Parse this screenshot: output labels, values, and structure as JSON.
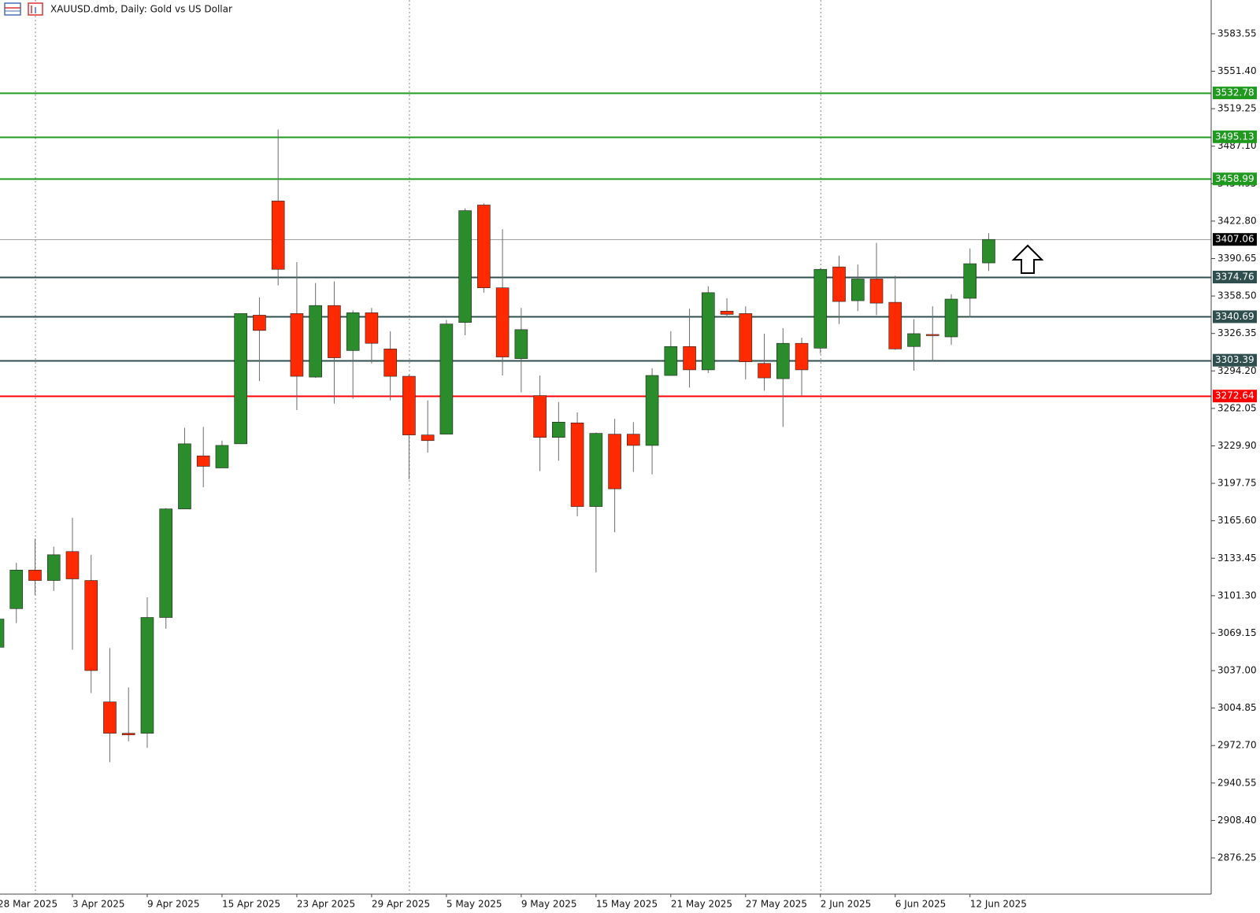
{
  "chart_data": {
    "type": "candlestick",
    "title": "XAUUSD.dmb, Daily:  Gold vs US Dollar",
    "categories": [
      "28 Mar 2025",
      null,
      null,
      null,
      "3 Apr 2025",
      null,
      null,
      null,
      "9 Apr 2025",
      null,
      null,
      null,
      "15 Apr 2025",
      null,
      null,
      null,
      "23 Apr 2025",
      null,
      null,
      null,
      "29 Apr 2025",
      null,
      null,
      null,
      "5 May 2025",
      null,
      null,
      null,
      "9 May 2025",
      null,
      null,
      null,
      "15 May 2025",
      null,
      null,
      null,
      "21 May 2025",
      null,
      null,
      null,
      "27 May 2025",
      null,
      null,
      null,
      "2 Jun 2025",
      null,
      null,
      null,
      "6 Jun 2025",
      null,
      null,
      null,
      "12 Jun 2025",
      null
    ],
    "open": [
      3057.08,
      3090.2,
      3123.32,
      3114.35,
      3139.19,
      3114.35,
      3010.16,
      2983.25,
      2983.25,
      3082.61,
      3175.76,
      3221.3,
      3210.95,
      3231.65,
      3342.05,
      3440.03,
      3343.43,
      3288.92,
      3350.33,
      3311.69,
      3344.12,
      3313.07,
      3289.61,
      3239.24,
      3239.93,
      3335.84,
      3436.58,
      3365.51,
      3304.79,
      3273.05,
      3237.17,
      3249.59,
      3177.83,
      3239.93,
      3239.93,
      3230.27,
      3290.3,
      3315.14,
      3295.13,
      3345.5,
      3343.43,
      3300.65,
      3287.54,
      3317.9,
      3313.76,
      3383.45,
      3354.47,
      3373.1,
      3353.09,
      3315.14,
      3325.49,
      3323.42,
      3356.54,
      3386.9
    ],
    "high": [
      3082.61,
      3129.53,
      3150.23,
      3143.33,
      3168.17,
      3136.43,
      3056.39,
      3022.58,
      3099.86,
      3176.45,
      3245.45,
      3246.14,
      3234.41,
      3343.43,
      3357.23,
      3501.44,
      3387.59,
      3369.65,
      3371.03,
      3346.19,
      3348.26,
      3328.25,
      3290.99,
      3268.91,
      3337.91,
      3433.82,
      3437.96,
      3415.88,
      3348.26,
      3290.3,
      3267.53,
      3258.56,
      3241.31,
      3253.04,
      3250.28,
      3296.51,
      3328.25,
      3347.57,
      3366.89,
      3356.54,
      3349.64,
      3326.18,
      3331.01,
      3322.73,
      3382.07,
      3393.11,
      3385.52,
      3404.15,
      3375.86,
      3338.6,
      3349.64,
      3359.99,
      3399.32,
      3412.43
    ],
    "low": [
      3056.39,
      3077.78,
      3101.93,
      3105.38,
      3055.01,
      3017.75,
      2958.41,
      2976.35,
      2970.83,
      3072.95,
      3175.76,
      3194.39,
      3210.95,
      3231.65,
      3285.47,
      3367.58,
      3260.63,
      3288.23,
      3266.15,
      3270.29,
      3300.65,
      3268.91,
      3201.29,
      3224.06,
      3239.93,
      3324.8,
      3361.37,
      3290.3,
      3275.81,
      3208.19,
      3217.16,
      3169.55,
      3121.25,
      3155.75,
      3207.5,
      3205.43,
      3290.3,
      3279.95,
      3292.37,
      3339.98,
      3286.85,
      3277.19,
      3246.14,
      3273.05,
      3308.93,
      3334.46,
      3345.5,
      3342.05,
      3312.38,
      3294.44,
      3302.72,
      3316.52,
      3339.98,
      3380.0
    ],
    "close": [
      3081.23,
      3123.32,
      3114.35,
      3136.43,
      3115.73,
      3037.07,
      2983.25,
      2981.87,
      3082.61,
      3175.76,
      3231.65,
      3212.33,
      3230.27,
      3343.43,
      3328.94,
      3381.38,
      3289.61,
      3350.33,
      3305.48,
      3344.12,
      3317.9,
      3289.61,
      3239.24,
      3234.41,
      3334.46,
      3431.75,
      3365.51,
      3306.17,
      3329.63,
      3237.17,
      3250.28,
      3177.83,
      3240.62,
      3193.01,
      3230.27,
      3290.3,
      3315.14,
      3295.13,
      3361.37,
      3342.74,
      3302.03,
      3288.23,
      3317.9,
      3295.13,
      3381.38,
      3353.78,
      3373.1,
      3352.4,
      3313.07,
      3326.18,
      3324.8,
      3355.85,
      3386.21,
      3407.06
    ],
    "up_color": "#2a8c2a",
    "down_color": "#ff2a00",
    "wick_color": "#6b6b6b",
    "ylim": [
      2845.2,
      3612.53
    ],
    "yticks": [
      3583.55,
      {
        "value": 3551.4,
        "label": "3551.40"
      },
      3519.25,
      {
        "value": 3487.1,
        "label": "3487.10"
      },
      3454.95,
      {
        "value": 3422.8,
        "label": "3422.80"
      },
      3390.65,
      {
        "value": 3358.5,
        "label": "3358.50"
      },
      3326.35,
      {
        "value": 3294.2,
        "label": "3294.20"
      },
      3262.05,
      {
        "value": 3229.9,
        "label": "3229.90"
      },
      3197.75,
      {
        "value": 3165.6,
        "label": "3165.60"
      },
      3133.45,
      {
        "value": 3101.3,
        "label": "3101.30"
      },
      3069.15,
      {
        "value": 3037.0,
        "label": "3037.00"
      },
      3004.85,
      {
        "value": 2972.7,
        "label": "2972.70"
      },
      2940.55,
      {
        "value": 2908.4,
        "label": "2908.40"
      },
      2876.25
    ],
    "period_separators": [
      2,
      22,
      44
    ],
    "levels": [
      {
        "value": 3532.78,
        "color": "#1f9a1f",
        "label_bg": "#1f9a1f"
      },
      {
        "value": 3495.13,
        "color": "#1f9a1f",
        "label_bg": "#1f9a1f"
      },
      {
        "value": 3458.99,
        "color": "#1f9a1f",
        "label_bg": "#1f9a1f"
      },
      {
        "value": 3407.06,
        "color": "#a0a0a0",
        "label_bg": "#000000"
      },
      {
        "value": 3374.76,
        "color": "#2f4f4f",
        "label_bg": "#2f4f4f"
      },
      {
        "value": 3340.69,
        "color": "#2f4f4f",
        "label_bg": "#2f4f4f"
      },
      {
        "value": 3303.39,
        "color": "#2f4f4f",
        "label_bg": "#2f4f4f"
      },
      {
        "value": 3272.64,
        "color": "#ff0000",
        "label_bg": "#ff0000"
      }
    ]
  }
}
